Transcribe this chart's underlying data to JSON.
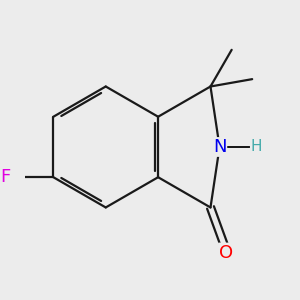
{
  "bg_color": "#ececec",
  "bond_color": "#1a1a1a",
  "bond_width": 1.6,
  "atom_colors": {
    "F": "#e000e0",
    "O": "#ff0000",
    "N": "#0000ee",
    "H": "#44aaaa",
    "C": "#1a1a1a"
  },
  "font_size_atom": 13,
  "font_size_H": 11,
  "dbo": 0.055,
  "ring_shrink": 0.12
}
